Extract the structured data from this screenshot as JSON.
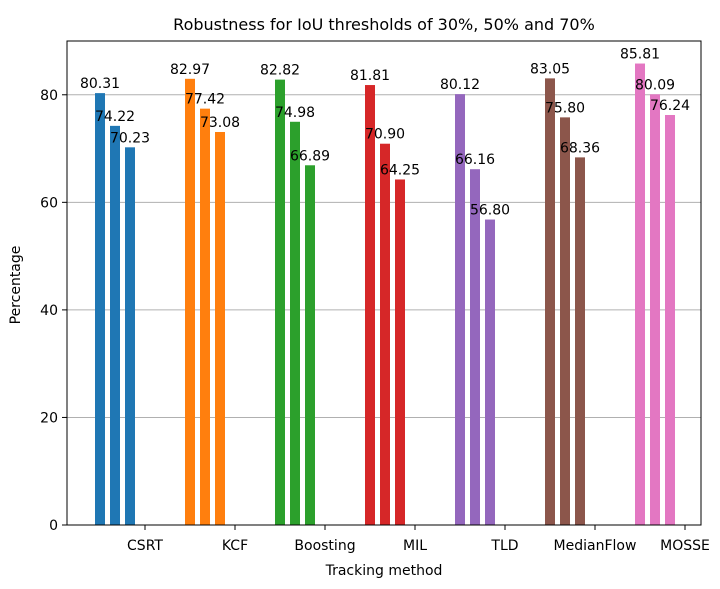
{
  "chart_data": {
    "type": "bar",
    "title": "Robustness for IoU thresholds of 30%, 50% and 70%",
    "xlabel": "Tracking method",
    "ylabel": "Percentage",
    "ylim": [
      0,
      90
    ],
    "yticks": [
      0,
      20,
      40,
      60,
      80
    ],
    "grid": "horizontal",
    "categories": [
      "CSRT",
      "KCF",
      "Boosting",
      "MIL",
      "TLD",
      "MedianFlow",
      "MOSSE"
    ],
    "groups": [
      {
        "category": "CSRT",
        "color": "#1f77b4",
        "values": [
          80.31,
          74.22,
          70.23
        ],
        "labels": [
          "80.31",
          "74.22",
          "70.23"
        ]
      },
      {
        "category": "KCF",
        "color": "#ff7f0e",
        "values": [
          82.97,
          77.42,
          73.08
        ],
        "labels": [
          "82.97",
          "77.42",
          "73.08"
        ]
      },
      {
        "category": "Boosting",
        "color": "#2ca02c",
        "values": [
          82.82,
          74.98,
          66.89
        ],
        "labels": [
          "82.82",
          "74.98",
          "66.89"
        ]
      },
      {
        "category": "MIL",
        "color": "#d62728",
        "values": [
          81.81,
          70.9,
          64.25
        ],
        "labels": [
          "81.81",
          "70.90",
          "64.25"
        ]
      },
      {
        "category": "TLD",
        "color": "#9467bd",
        "values": [
          80.12,
          66.16,
          56.8
        ],
        "labels": [
          "80.12",
          "66.16",
          "56.80"
        ]
      },
      {
        "category": "MedianFlow",
        "color": "#8c564b",
        "values": [
          83.05,
          75.8,
          68.36
        ],
        "labels": [
          "83.05",
          "75.80",
          "68.36"
        ]
      },
      {
        "category": "MOSSE",
        "color": "#e377c2",
        "values": [
          85.81,
          80.09,
          76.24
        ],
        "labels": [
          "85.81",
          "80.09",
          "76.24"
        ]
      }
    ]
  }
}
